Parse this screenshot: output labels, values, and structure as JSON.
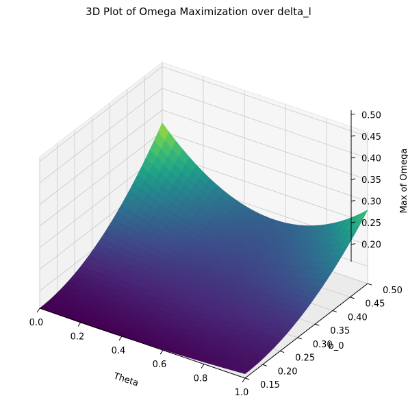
{
  "chart_data": {
    "type": "surface",
    "title": "3D Plot of Omega Maximization over delta_l",
    "xlabel": "Theta",
    "ylabel": "b_0",
    "zlabel": "Max of Omega",
    "xlim": [
      0.0,
      1.0
    ],
    "ylim": [
      0.15,
      0.5
    ],
    "zlim": [
      0.16,
      0.51
    ],
    "xticks": [
      "0.0",
      "0.2",
      "0.4",
      "0.6",
      "0.8",
      "1.0"
    ],
    "yticks": [
      "0.15",
      "0.20",
      "0.25",
      "0.30",
      "0.35",
      "0.40",
      "0.45",
      "0.50"
    ],
    "zticks": [
      "0.20",
      "0.25",
      "0.30",
      "0.35",
      "0.40",
      "0.45",
      "0.50"
    ],
    "colormap": "viridis",
    "grid": true,
    "surface": {
      "x_range": [
        0.0,
        1.0
      ],
      "y_range": [
        0.15,
        0.5
      ],
      "corner_values": {
        "theta0_b0.15": 0.16,
        "theta0_b0.50": 0.37,
        "theta1_b0.15": 0.17,
        "theta1_b0.50": 0.33
      },
      "minimum_theta": 0.5
    }
  }
}
